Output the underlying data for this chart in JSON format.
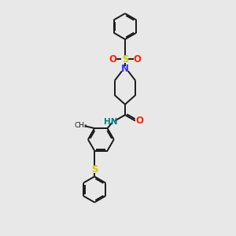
{
  "bg_color": "#e8e8e8",
  "bond_color": "#1a1a1a",
  "N_color": "#3333ff",
  "O_color": "#ff2200",
  "S_color": "#cccc00",
  "NH_color": "#008080",
  "lw": 1.4,
  "xlim": [
    0,
    6
  ],
  "ylim": [
    0,
    10
  ]
}
